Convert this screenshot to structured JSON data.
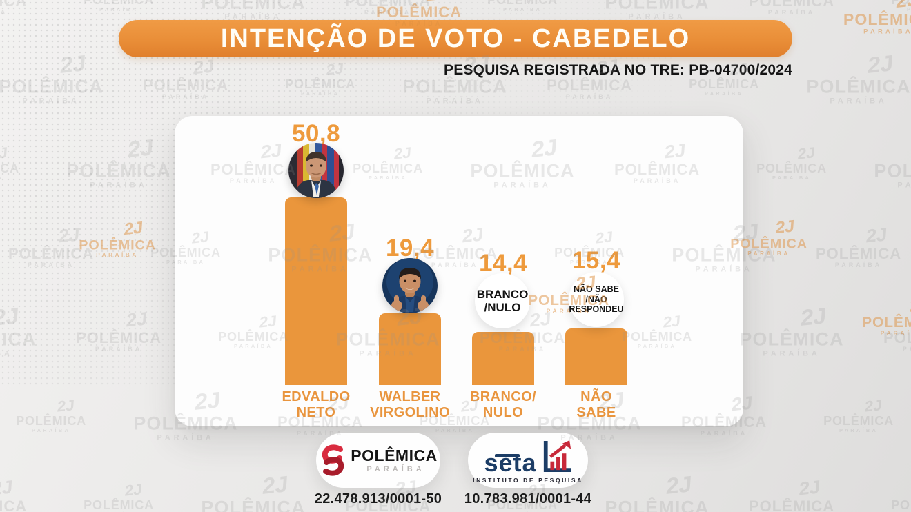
{
  "header": {
    "title": "INTENÇÃO DE VOTO - CABEDELO",
    "subtitle": "PESQUISA REGISTRADA NO TRE: PB-04700/2024"
  },
  "chart_data": {
    "type": "bar",
    "title": "INTENÇÃO DE VOTO - CABEDELO",
    "categories": [
      "EDVALDO NETO",
      "WALBER VIRGOLINO",
      "BRANCO/NULO",
      "NÃO SABE"
    ],
    "values": [
      50.8,
      19.4,
      14.4,
      15.4
    ],
    "ylim": [
      0,
      55
    ],
    "grid": false,
    "legend": false,
    "bar_color": "#EA963C",
    "columns": [
      {
        "value": 50.8,
        "value_label": "50,8",
        "marker": "photo",
        "name_lines": [
          "EDVALDO",
          "NETO"
        ]
      },
      {
        "value": 19.4,
        "value_label": "19,4",
        "marker": "photo",
        "name_lines": [
          "WALBER",
          "VIRGOLINO"
        ]
      },
      {
        "value": 14.4,
        "value_label": "14,4",
        "marker": "badge",
        "badge_lines": [
          "BRANCO",
          "/NULO"
        ],
        "name_lines": [
          "BRANCO/",
          "NULO"
        ]
      },
      {
        "value": 15.4,
        "value_label": "15,4",
        "marker": "badge",
        "badge_lines": [
          "NÃO SABE",
          "/NÃO",
          "RESPONDEU"
        ],
        "name_lines": [
          "NÃO",
          "SABE"
        ]
      }
    ]
  },
  "footer": {
    "polemica": {
      "brand": "POLÊMICA",
      "region": "PARAÍBA",
      "cnpj": "22.478.913/0001-50"
    },
    "seta": {
      "brand": "seta",
      "tagline": "INSTITUTO DE PESQUISA",
      "cnpj": "10.783.981/0001-44"
    }
  },
  "watermark": {
    "glyph": "2J",
    "line1": "POLÊMICA",
    "line2": "PARAÍBA"
  },
  "colors": {
    "banner_orange": "#E98E38",
    "bar_orange": "#EA963C",
    "label_orange": "#E9953E",
    "text_dark": "#141414",
    "polemica_red": "#C4212F",
    "seta_navy": "#1C3D66",
    "seta_red": "#C8293A",
    "background_gray": "#EAE9E8"
  }
}
